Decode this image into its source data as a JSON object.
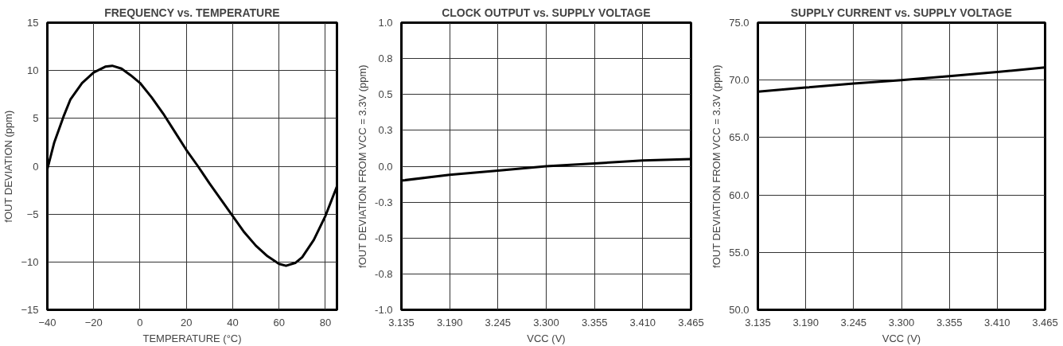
{
  "chart_data": [
    {
      "type": "line",
      "title": "FREQUENCY vs. TEMPERATURE",
      "xlabel": "TEMPERATURE (°C)",
      "ylabel": "fOUT DEVIATION (ppm)",
      "x": [
        -40,
        -37,
        -33,
        -30,
        -25,
        -20,
        -15,
        -12,
        -8,
        -4,
        0,
        5,
        10,
        15,
        20,
        25,
        30,
        35,
        40,
        45,
        50,
        55,
        60,
        63,
        67,
        70,
        75,
        80,
        85
      ],
      "series": [
        {
          "color": "#000000",
          "values": [
            -0.3,
            2.5,
            5.2,
            7.0,
            8.7,
            9.8,
            10.4,
            10.5,
            10.2,
            9.5,
            8.7,
            7.2,
            5.5,
            3.6,
            1.7,
            0.0,
            -1.8,
            -3.5,
            -5.2,
            -6.9,
            -8.3,
            -9.4,
            -10.2,
            -10.4,
            -10.1,
            -9.5,
            -7.7,
            -5.2,
            -2.1
          ]
        }
      ],
      "xlim": [
        -40,
        85
      ],
      "xticks": [
        -40,
        -20,
        0,
        20,
        40,
        60,
        80
      ],
      "ylim": [
        -15,
        15
      ],
      "yticks": [
        -15,
        -10,
        -5,
        0,
        5,
        10,
        15
      ],
      "grid": true,
      "line_style": "solid"
    },
    {
      "type": "line",
      "title": "CLOCK OUTPUT vs. SUPPLY VOLTAGE",
      "xlabel": "VCC (V)",
      "ylabel": "fOUT DEVIATION FROM VCC = 3.3V (ppm)",
      "x": [
        3.135,
        3.19,
        3.245,
        3.3,
        3.355,
        3.41,
        3.465
      ],
      "series": [
        {
          "color": "#000000",
          "values": [
            -0.1,
            -0.06,
            -0.03,
            0.0,
            0.02,
            0.04,
            0.05
          ]
        }
      ],
      "xlim": [
        3.135,
        3.465
      ],
      "xticks": [
        {
          "value": 3.135,
          "label": "3.135"
        },
        {
          "value": 3.19,
          "label": "3.190"
        },
        {
          "value": 3.245,
          "label": "3.245"
        },
        {
          "value": 3.3,
          "label": "3.300"
        },
        {
          "value": 3.355,
          "label": "3.355"
        },
        {
          "value": 3.41,
          "label": "3.410"
        },
        {
          "value": 3.465,
          "label": "3.465"
        }
      ],
      "ylim": [
        -1,
        1
      ],
      "yticks": [
        {
          "value": -1,
          "label": "-1.0"
        },
        {
          "value": -0.75,
          "label": "-0.8"
        },
        {
          "value": -0.5,
          "label": "-0.5"
        },
        {
          "value": -0.25,
          "label": "-0.3"
        },
        {
          "value": 0,
          "label": "0.0"
        },
        {
          "value": 0.25,
          "label": "0.3"
        },
        {
          "value": 0.5,
          "label": "0.5"
        },
        {
          "value": 0.75,
          "label": "0.8"
        },
        {
          "value": 1,
          "label": "1.0"
        }
      ],
      "grid": true,
      "line_style": "solid"
    },
    {
      "type": "line",
      "title": "SUPPLY CURRENT vs. SUPPLY VOLTAGE",
      "xlabel": "VCC (V)",
      "ylabel": "fOUT DEVIATION FROM VCC = 3.3V (ppm)",
      "x": [
        3.135,
        3.19,
        3.245,
        3.3,
        3.355,
        3.41,
        3.465
      ],
      "series": [
        {
          "color": "#000000",
          "values": [
            69.0,
            69.35,
            69.7,
            70.0,
            70.35,
            70.7,
            71.1
          ]
        }
      ],
      "xlim": [
        3.135,
        3.465
      ],
      "xticks": [
        {
          "value": 3.135,
          "label": "3.135"
        },
        {
          "value": 3.19,
          "label": "3.190"
        },
        {
          "value": 3.245,
          "label": "3.245"
        },
        {
          "value": 3.3,
          "label": "3.300"
        },
        {
          "value": 3.355,
          "label": "3.355"
        },
        {
          "value": 3.41,
          "label": "3.410"
        },
        {
          "value": 3.465,
          "label": "3.465"
        }
      ],
      "ylim": [
        50,
        75
      ],
      "yticks": [
        {
          "value": 50,
          "label": "50.0"
        },
        {
          "value": 55,
          "label": "55.0"
        },
        {
          "value": 60,
          "label": "60.0"
        },
        {
          "value": 65,
          "label": "65.0"
        },
        {
          "value": 70,
          "label": "70.0"
        },
        {
          "value": 75,
          "label": "75.0"
        }
      ],
      "grid": true,
      "line_style": "solid"
    }
  ]
}
